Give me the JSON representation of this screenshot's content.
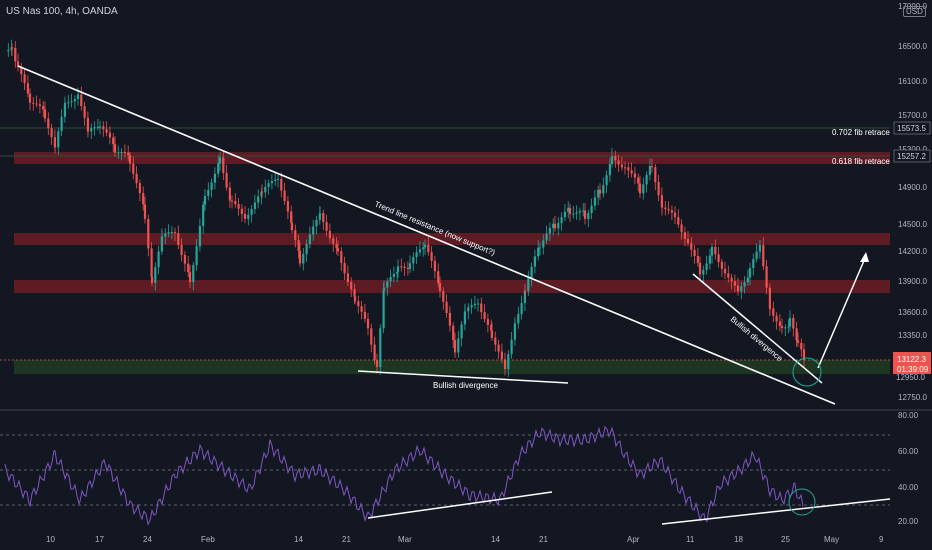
{
  "header": {
    "ticker": "US Nas 100, 4h, OANDA",
    "currency": "USD",
    "top_price_cut": "17000.0"
  },
  "chart_data": [
    {
      "type": "candlestick",
      "price_ticks": [
        "16500.0",
        "16100.0",
        "15700.0",
        "15300.0",
        "14900.0",
        "14500.0",
        "14200.0",
        "13900.0",
        "13600.0",
        "13350.0",
        "12950.0",
        "12750.0"
      ],
      "x_ticks": [
        "10",
        "17",
        "24",
        "Feb",
        "14",
        "21",
        "Mar",
        "14",
        "21",
        "Apr",
        "11",
        "18",
        "25",
        "May",
        "9"
      ],
      "price_tags": [
        {
          "label": "0.702 fib retrace",
          "value": "15573.5"
        },
        {
          "label": "0.618 fib retrace",
          "value": "15257.2"
        }
      ],
      "current_price": "13122.3",
      "countdown": "01:39:09",
      "annotations": [
        "Trend line resistance (now support?)",
        "Bullish divergence",
        "Bullish divergence"
      ],
      "colors": {
        "up": "#26a69a",
        "down": "#ef5350",
        "zone_red": "#6b1c25",
        "zone_green": "#1e3a22",
        "line": "#ffffff"
      }
    },
    {
      "type": "line",
      "indicator": "RSI",
      "y_ticks": [
        "80.00",
        "60.00",
        "40.00",
        "20.00"
      ],
      "series_color": "#7e57c2",
      "levels": [
        70,
        50,
        30
      ]
    }
  ]
}
